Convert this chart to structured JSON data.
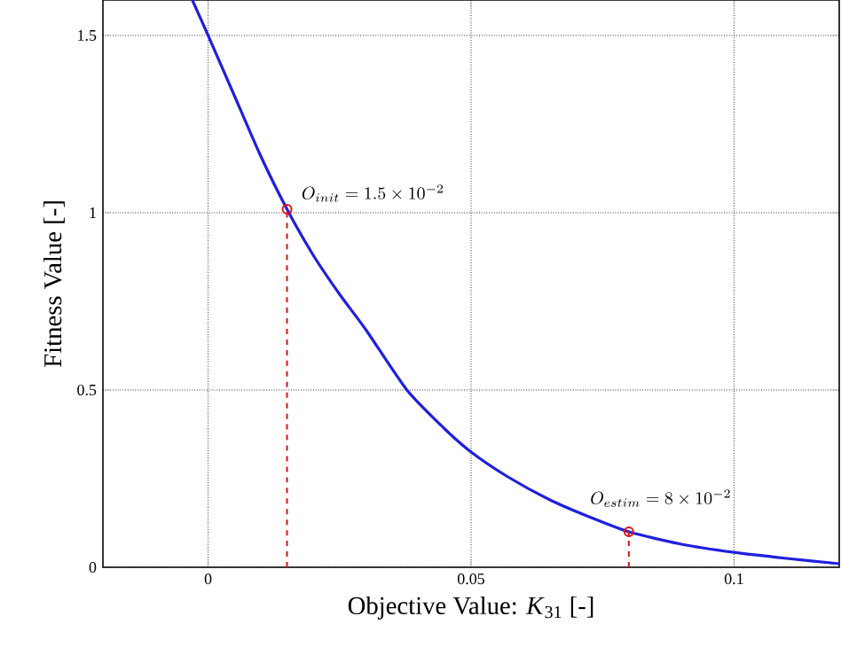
{
  "chart_data": {
    "type": "line",
    "xlabel": "Objective Value: *K*$_{31}$ [-]",
    "ylabel": "Fitness Value [-]",
    "xlim": [
      -0.02,
      0.12
    ],
    "ylim": [
      0,
      1.6
    ],
    "xticks": [
      0,
      0.05,
      0.1
    ],
    "yticks": [
      0,
      0.5,
      1,
      1.5
    ],
    "grid": true,
    "marker": "none",
    "line_style": "solid",
    "series": [
      {
        "color": "#1f1fe0",
        "x": [
          -0.003,
          0,
          0.005,
          0.01,
          0.015,
          0.02,
          0.025,
          0.03,
          0.0378,
          0.045,
          0.05,
          0.057,
          0.065,
          0.072,
          0.08,
          0.09,
          0.1,
          0.11,
          0.12
        ],
        "values": [
          1.6,
          1.5,
          1.33,
          1.16,
          1.01,
          0.88,
          0.77,
          0.67,
          0.5,
          0.39,
          0.325,
          0.255,
          0.19,
          0.145,
          0.1,
          0.065,
          0.042,
          0.025,
          0.01
        ]
      },
      {
        "type": "lollipop",
        "color": "#e01010",
        "line_style": "dashed",
        "marker": "circle",
        "x": [
          0.015,
          0.08
        ],
        "values": [
          1.01,
          0.1
        ]
      }
    ],
    "annotations": [
      {
        "text": "O_{init} = 1.5\\times10^{-2}",
        "x": 0.015,
        "y": 1.01
      },
      {
        "text": "O_{estim} = 8\\times10^{-2}",
        "x": 0.08,
        "y": 0.1
      }
    ]
  }
}
